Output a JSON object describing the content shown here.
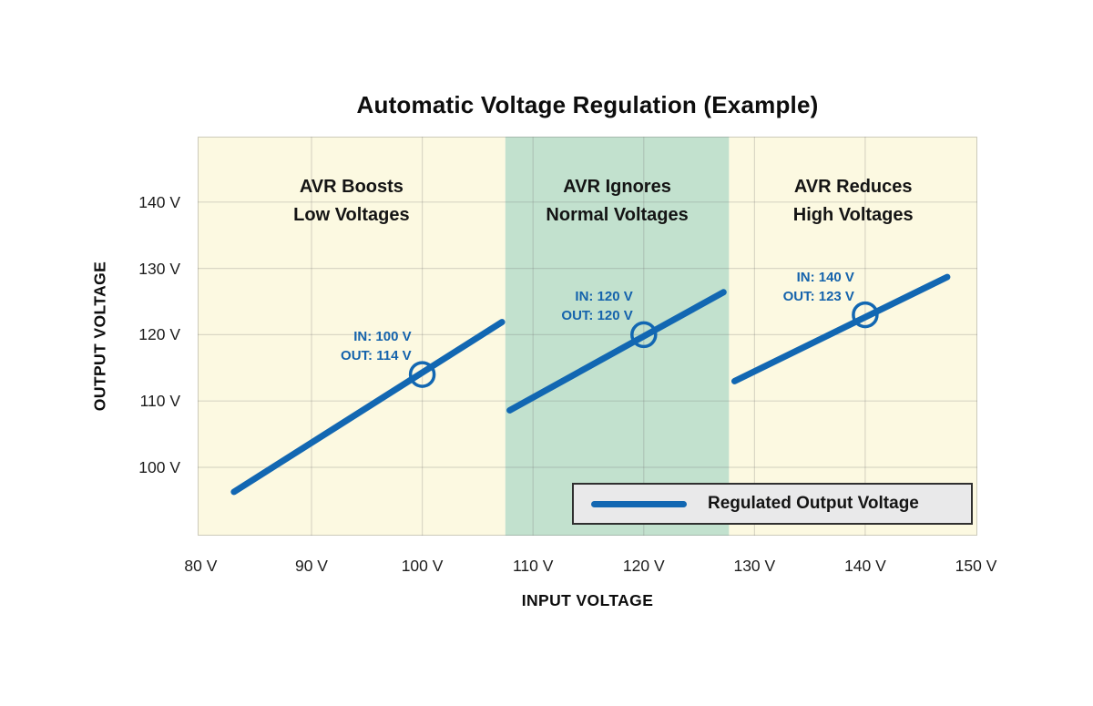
{
  "chart_data": {
    "type": "line",
    "title": "Automatic Voltage Regulation (Example)",
    "xlabel": "INPUT VOLTAGE",
    "ylabel": "OUTPUT VOLTAGE",
    "xlim": [
      79.72,
      150.12
    ],
    "ylim": [
      89.7,
      149.86
    ],
    "x_ticks": [
      80,
      90,
      100,
      110,
      120,
      130,
      140,
      150
    ],
    "y_ticks": [
      100,
      110,
      120,
      130,
      140
    ],
    "x_grid": [
      90,
      100,
      110,
      120,
      130,
      140
    ],
    "y_grid": [
      100,
      110,
      120,
      130,
      140
    ],
    "tick_suffix": " V",
    "grid": true,
    "legend": {
      "label": "Regulated Output Voltage",
      "position": "bottom-right-inside"
    },
    "colors": {
      "line": "#1267b2",
      "annotation_text": "#1563ac",
      "region_yellow": "#fcf9e1",
      "region_green": "#c2e1ce",
      "gridline": "rgba(115,115,115,0.25)",
      "plot_border": "rgba(115,115,115,0.35)",
      "legend_bg": "#e9e9ea",
      "legend_border": "#2f2f2f",
      "text": "#141414"
    },
    "regions": [
      {
        "name": "boost",
        "from": 79.72,
        "to": 107.5,
        "color": "#fcf9e1",
        "label_lines": [
          "AVR Boosts",
          "Low Voltages"
        ]
      },
      {
        "name": "normal",
        "from": 107.5,
        "to": 127.7,
        "color": "#c2e1ce",
        "label_lines": [
          "AVR Ignores",
          "Normal Voltages"
        ]
      },
      {
        "name": "reduce",
        "from": 127.7,
        "to": 150.12,
        "color": "#fcf9e1",
        "label_lines": [
          "AVR Reduces",
          "High Voltages"
        ]
      }
    ],
    "series": [
      {
        "name": "Regulated Output Voltage",
        "color": "#1267b2",
        "segments": [
          [
            [
              83.0,
              96.3
            ],
            [
              107.2,
              121.9
            ]
          ],
          [
            [
              107.9,
              108.6
            ],
            [
              127.2,
              126.4
            ]
          ],
          [
            [
              128.2,
              113.0
            ],
            [
              147.4,
              128.7
            ]
          ]
        ]
      }
    ],
    "markers": [
      {
        "x": 100,
        "y": 114,
        "label_lines": [
          "IN: 100 V",
          "OUT: 114 V"
        ]
      },
      {
        "x": 120,
        "y": 120,
        "label_lines": [
          "IN: 120 V",
          "OUT: 120 V"
        ]
      },
      {
        "x": 140,
        "y": 123,
        "label_lines": [
          "IN: 140 V",
          "OUT: 123 V"
        ]
      }
    ]
  }
}
